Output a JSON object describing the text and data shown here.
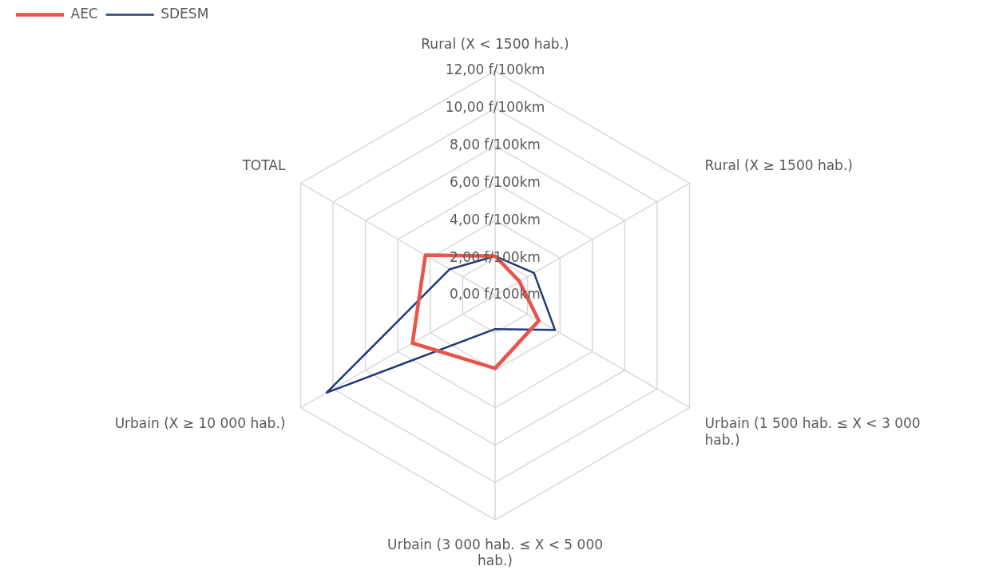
{
  "chart_data": {
    "type": "radar",
    "categories": [
      "Rural (X < 1500 hab.)",
      "Rural (X ≥ 1500 hab.)",
      "Urbain (1 500 hab. ≤ X < 3 000 hab.)",
      "Urbain (3 000 hab. ≤ X < 5 000 hab.)",
      "Urbain (X ≥ 10 000 hab.)",
      "TOTAL"
    ],
    "series": [
      {
        "name": "AEC",
        "color": "#e8534a",
        "values": [
          2.1,
          1.5,
          2.7,
          3.9,
          5.1,
          4.3
        ]
      },
      {
        "name": "SDESM",
        "color": "#1f3a7a",
        "values": [
          2.1,
          2.4,
          3.7,
          1.8,
          10.4,
          2.8
        ]
      }
    ],
    "ylim": [
      0,
      12
    ],
    "yticks": [
      {
        "value": 0,
        "label": "0,00 f/100km"
      },
      {
        "value": 2,
        "label": "2,00 f/100km"
      },
      {
        "value": 4,
        "label": "4,00 f/100km"
      },
      {
        "value": 6,
        "label": "6,00 f/100km"
      },
      {
        "value": 8,
        "label": "8,00 f/100km"
      },
      {
        "value": 10,
        "label": "10,00 f/100km"
      },
      {
        "value": 12,
        "label": "12,00 f/100km"
      }
    ],
    "grid": true,
    "legend": "top left",
    "marker": "none"
  }
}
